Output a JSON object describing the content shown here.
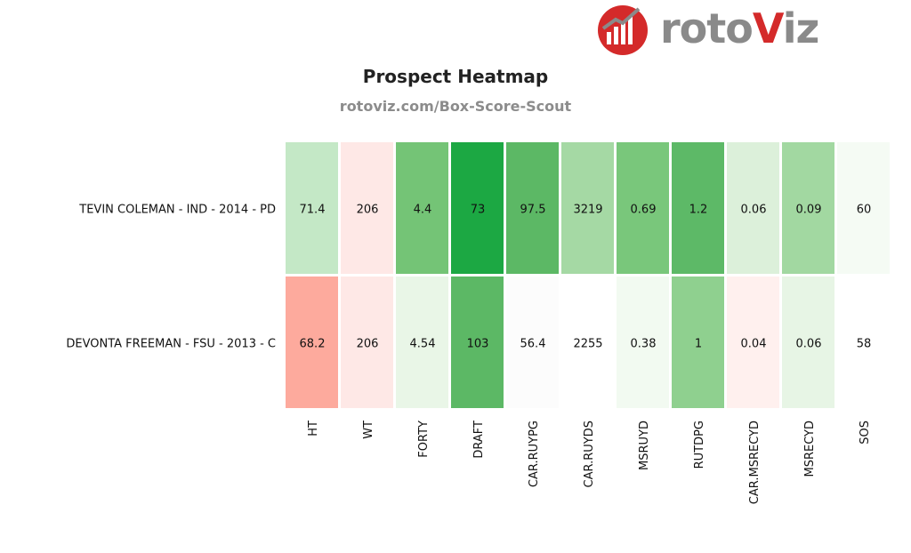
{
  "logo": {
    "text_main": "roto",
    "text_accent": "V",
    "text_tail": "iz"
  },
  "chart_title": "Prospect Heatmap",
  "chart_subtitle": "rotoviz.com/Box-Score-Scout",
  "chart_data": {
    "type": "heatmap",
    "rows": [
      "TEVIN COLEMAN - IND - 2014 - PD",
      "DEVONTA FREEMAN - FSU - 2013 - C"
    ],
    "columns": [
      "HT",
      "WT",
      "FORTY",
      "DRAFT",
      "CAR.RUYPG",
      "CAR.RUYDS",
      "MSRUYD",
      "RUTDPG",
      "CAR.MSRECYD",
      "MSRECYD",
      "SOS"
    ],
    "values": [
      [
        "71.4",
        "206",
        "4.4",
        "73",
        "97.5",
        "3219",
        "0.69",
        "1.2",
        "0.06",
        "0.09",
        "60"
      ],
      [
        "68.2",
        "206",
        "4.54",
        "103",
        "56.4",
        "2255",
        "0.38",
        "1",
        "0.04",
        "0.06",
        "58"
      ]
    ],
    "cell_colors": [
      [
        "#c4e8c6",
        "#fee8e6",
        "#74c476",
        "#1ca843",
        "#5cb865",
        "#a5d9a4",
        "#79c77b",
        "#5db967",
        "#dcf0da",
        "#a2d8a1",
        "#f5fbf4"
      ],
      [
        "#fdaa9d",
        "#fee8e6",
        "#e9f6e7",
        "#5cb865",
        "#fcfcfc",
        "#ffffff",
        "#f2faf1",
        "#8fd08f",
        "#fff0ee",
        "#e7f5e5",
        "#ffffff"
      ]
    ],
    "color_scale": {
      "low": "#fb6a4a",
      "mid": "#ffffff",
      "high": "#1ca843"
    },
    "grid": false,
    "legend": "none"
  }
}
